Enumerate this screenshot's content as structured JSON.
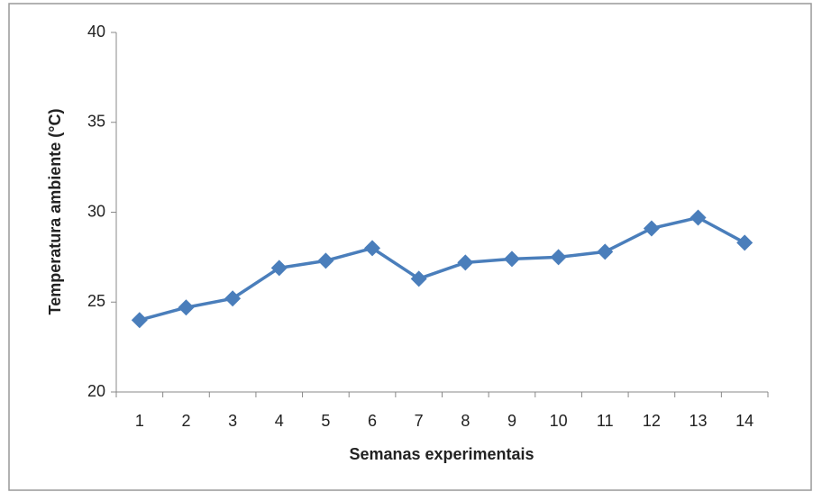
{
  "chart_data": {
    "type": "line",
    "x_label": "Semanas experimentais",
    "y_label": "Temperatura ambiente (°C)",
    "categories": [
      "1",
      "2",
      "3",
      "4",
      "5",
      "6",
      "7",
      "8",
      "9",
      "10",
      "11",
      "12",
      "13",
      "14"
    ],
    "series": [
      {
        "name": "Temperatura ambiente",
        "color": "#4a7ebb",
        "values": [
          24.0,
          24.7,
          25.2,
          26.9,
          27.3,
          28.0,
          26.3,
          27.2,
          27.4,
          27.5,
          27.8,
          29.1,
          29.7,
          28.3
        ]
      }
    ],
    "ylim": [
      20,
      40
    ],
    "yticks": [
      20,
      25,
      30,
      35,
      40
    ],
    "grid": false
  }
}
